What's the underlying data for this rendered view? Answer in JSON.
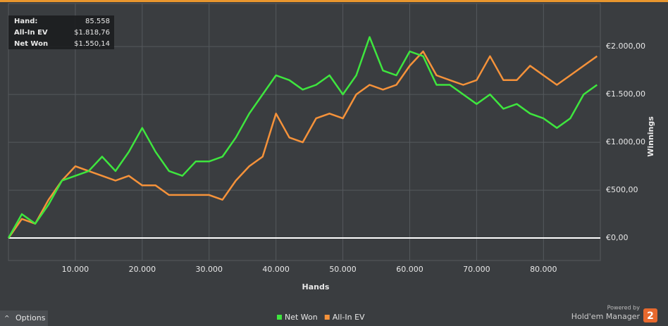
{
  "chart_data": {
    "type": "line",
    "x_label": "Hands",
    "y_label": "Winnings",
    "x": [
      0,
      2000,
      4000,
      6000,
      8000,
      10000,
      12000,
      14000,
      16000,
      18000,
      20000,
      22000,
      24000,
      26000,
      28000,
      30000,
      32000,
      34000,
      36000,
      38000,
      40000,
      42000,
      44000,
      46000,
      48000,
      50000,
      52000,
      54000,
      56000,
      58000,
      60000,
      62000,
      64000,
      66000,
      68000,
      70000,
      72000,
      74000,
      76000,
      78000,
      80000,
      82000,
      84000,
      86000,
      88000
    ],
    "series": [
      {
        "name": "Net Won",
        "color": "#3ee63e",
        "values": [
          0,
          250,
          150,
          350,
          600,
          650,
          700,
          850,
          700,
          900,
          1150,
          900,
          700,
          650,
          800,
          800,
          850,
          1050,
          1300,
          1500,
          1700,
          1650,
          1550,
          1600,
          1700,
          1500,
          1700,
          2100,
          1750,
          1700,
          1950,
          1900,
          1600,
          1600,
          1500,
          1400,
          1500,
          1350,
          1400,
          1300,
          1250,
          1150,
          1250,
          1500,
          1600
        ]
      },
      {
        "name": "All-In EV",
        "color": "#f5923a",
        "values": [
          0,
          200,
          150,
          400,
          600,
          750,
          700,
          650,
          600,
          650,
          550,
          550,
          450,
          450,
          450,
          450,
          400,
          600,
          750,
          850,
          1300,
          1050,
          1000,
          1250,
          1300,
          1250,
          1500,
          1600,
          1550,
          1600,
          1800,
          1950,
          1700,
          1650,
          1600,
          1650,
          1900,
          1650,
          1650,
          1800,
          1700,
          1600,
          1700,
          1800,
          1900
        ]
      }
    ],
    "xlim": [
      0,
      88500
    ],
    "ylim": [
      -235,
      2450
    ],
    "xticks": [
      {
        "value": 10000,
        "label": "10.000"
      },
      {
        "value": 20000,
        "label": "20.000"
      },
      {
        "value": 30000,
        "label": "30.000"
      },
      {
        "value": 40000,
        "label": "40.000"
      },
      {
        "value": 50000,
        "label": "50.000"
      },
      {
        "value": 60000,
        "label": "60.000"
      },
      {
        "value": 70000,
        "label": "70.000"
      },
      {
        "value": 80000,
        "label": "80.000"
      }
    ],
    "yticks": [
      {
        "value": 0,
        "label": "€0,00"
      },
      {
        "value": 500,
        "label": "€500,00"
      },
      {
        "value": 1000,
        "label": "€1.000,00"
      },
      {
        "value": 1500,
        "label": "€1.500,00"
      },
      {
        "value": 2000,
        "label": "€2.000,00"
      }
    ],
    "grid": true,
    "info_box": [
      {
        "label": "Hand:",
        "value": "85.558"
      },
      {
        "label": "All-In EV",
        "value": "$1.818,76"
      },
      {
        "label": "Net Won",
        "value": "$1.550,14"
      }
    ]
  },
  "ui": {
    "options_button": "Options",
    "powered_by": "Powered by",
    "brand": "Hold'em Manager",
    "brand_badge": "2"
  }
}
